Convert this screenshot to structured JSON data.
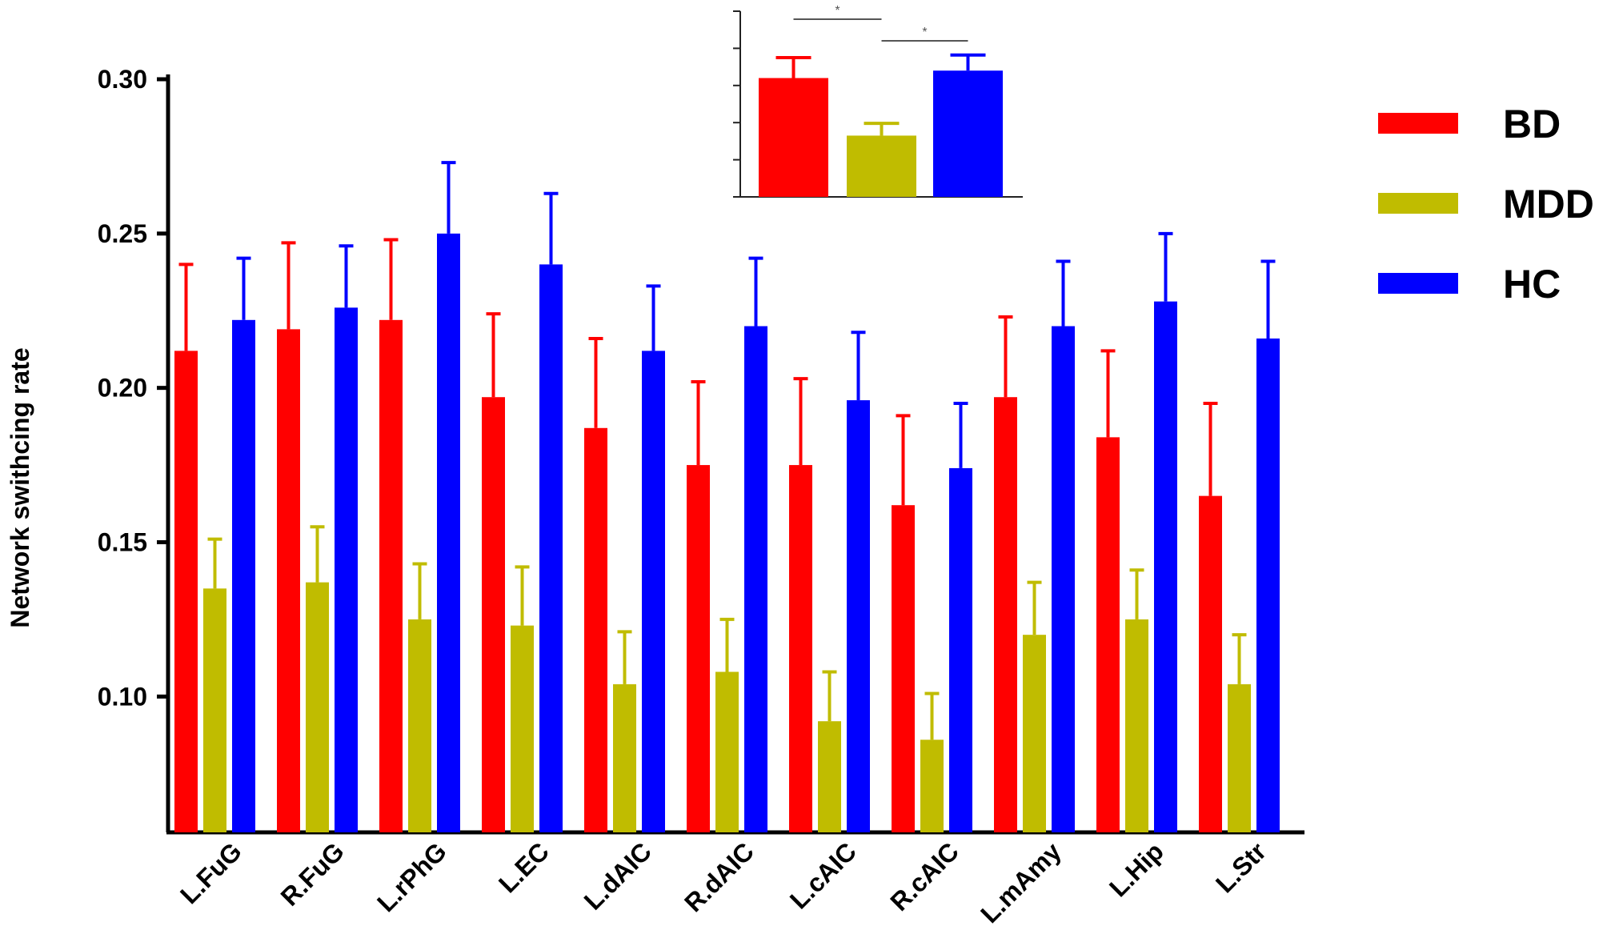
{
  "chart_data": [
    {
      "type": "bar",
      "title": "",
      "xlabel": "",
      "ylabel": "Network swithcing rate",
      "ylim": [
        0.056,
        0.3
      ],
      "yticks": [
        0.1,
        0.15,
        0.2,
        0.25,
        0.3
      ],
      "ytick_labels": [
        "0.10",
        "0.15",
        "0.20",
        "0.25",
        "0.30"
      ],
      "categories": [
        "L.FuG",
        "R.FuG",
        "L.rPhG",
        "L.EC",
        "L.dAIC",
        "R.dAIC",
        "L.cAIC",
        "R.cAIC",
        "L.mAmy",
        "L.Hip",
        "L.Str"
      ],
      "series": [
        {
          "name": "BD",
          "color": "#ff0000",
          "values": [
            0.212,
            0.219,
            0.222,
            0.197,
            0.187,
            0.175,
            0.175,
            0.162,
            0.197,
            0.184,
            0.165
          ],
          "errors": [
            0.028,
            0.028,
            0.026,
            0.027,
            0.029,
            0.027,
            0.028,
            0.029,
            0.026,
            0.028,
            0.03
          ]
        },
        {
          "name": "MDD",
          "color": "#c0bc00",
          "values": [
            0.135,
            0.137,
            0.125,
            0.123,
            0.104,
            0.108,
            0.092,
            0.086,
            0.12,
            0.125,
            0.104
          ],
          "errors": [
            0.016,
            0.018,
            0.018,
            0.019,
            0.017,
            0.017,
            0.016,
            0.015,
            0.017,
            0.016,
            0.016
          ]
        },
        {
          "name": "HC",
          "color": "#0000ff",
          "values": [
            0.222,
            0.226,
            0.25,
            0.24,
            0.212,
            0.22,
            0.196,
            0.174,
            0.22,
            0.228,
            0.216
          ],
          "errors": [
            0.02,
            0.02,
            0.023,
            0.023,
            0.021,
            0.022,
            0.022,
            0.021,
            0.021,
            0.022,
            0.025
          ]
        }
      ],
      "legend": {
        "position": "right",
        "entries": [
          "BD",
          "MDD",
          "HC"
        ]
      }
    },
    {
      "type": "bar",
      "title": "",
      "inset": true,
      "ylim": [
        0,
        5
      ],
      "categories": [
        "BD",
        "MDD",
        "HC"
      ],
      "values": [
        3.2,
        1.65,
        3.4
      ],
      "errors": [
        0.55,
        0.33,
        0.42
      ],
      "colors": [
        "#ff0000",
        "#c0bc00",
        "#0000ff"
      ],
      "significance": [
        {
          "from": "BD",
          "to": "MDD",
          "label": "*"
        },
        {
          "from": "MDD",
          "to": "HC",
          "label": "*"
        }
      ]
    }
  ]
}
